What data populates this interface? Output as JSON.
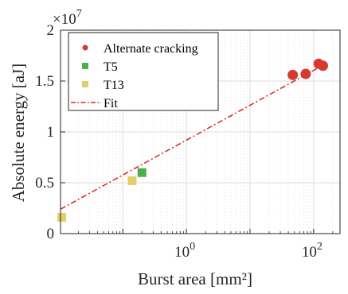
{
  "chart_data": {
    "type": "scatter",
    "xlabel": "Burst area [mm²]",
    "ylabel": "Absolute energy [aJ]",
    "y_multiplier": {
      "base": "×10",
      "exp": "7"
    },
    "xscale": "log",
    "xlim": [
      0.0105,
      260
    ],
    "ylim": [
      0,
      20000000
    ],
    "y_ticks": [
      {
        "value": 0,
        "label": "0"
      },
      {
        "value": 5000000,
        "label": "0.5"
      },
      {
        "value": 10000000,
        "label": "1"
      },
      {
        "value": 15000000,
        "label": "1.5"
      },
      {
        "value": 20000000,
        "label": "2"
      }
    ],
    "x_ticks": [
      {
        "value": 1,
        "base": "10",
        "exp": "0"
      },
      {
        "value": 100,
        "base": "10",
        "exp": "2"
      }
    ],
    "grid": true,
    "legend_position": "top-left",
    "series": [
      {
        "name": "Alternate cracking",
        "marker": "circle",
        "color": "#d63a2f",
        "points": [
          [
            47,
            15600000
          ],
          [
            75,
            15700000
          ],
          [
            120,
            16700000
          ],
          [
            140,
            16500000
          ]
        ]
      },
      {
        "name": "T5",
        "marker": "square",
        "color": "#4cae4c",
        "points": [
          [
            0.2,
            6000000
          ]
        ]
      },
      {
        "name": "T13",
        "marker": "square",
        "color": "#e3cf6a",
        "points": [
          [
            0.011,
            1600000
          ],
          [
            0.14,
            5200000
          ]
        ]
      },
      {
        "name": "Fit",
        "marker": "line",
        "color": "#e0201b",
        "style": "dash-dot",
        "points": [
          [
            0.0105,
            2400000
          ],
          [
            160,
            16750000
          ]
        ]
      }
    ]
  }
}
